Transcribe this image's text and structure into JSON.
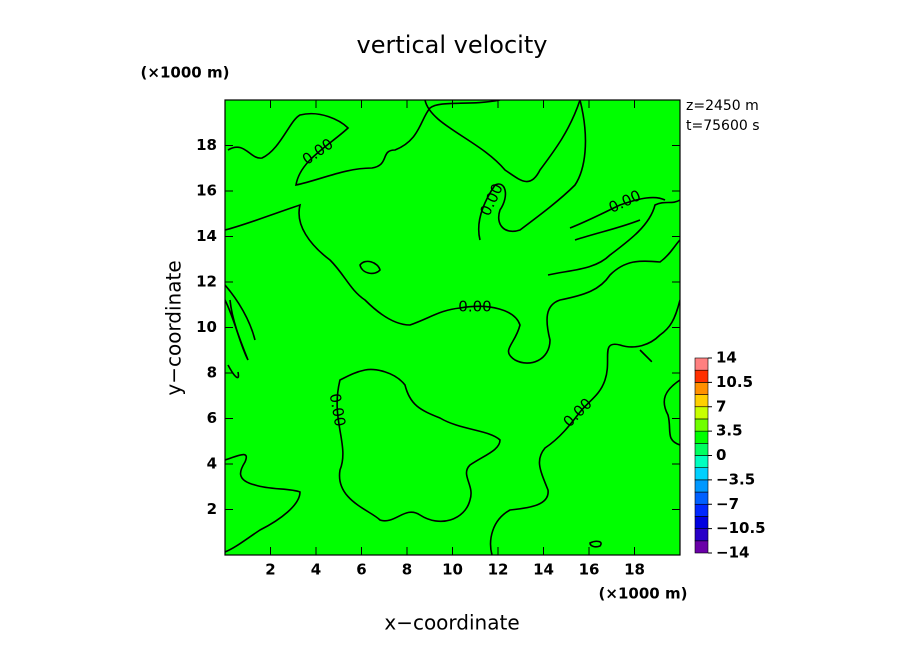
{
  "chart_data": {
    "type": "contour",
    "title": "vertical velocity",
    "xlabel": "x−coordinate",
    "ylabel": "y−coordinate",
    "x_unit": "(×1000 m)",
    "y_unit": "(×1000 m)",
    "annotations": [
      "z=2450 m",
      "t=75600 s"
    ],
    "xlim": [
      0,
      20
    ],
    "ylim": [
      0,
      20
    ],
    "xticks": [
      2,
      4,
      6,
      8,
      10,
      12,
      14,
      16,
      18
    ],
    "yticks": [
      2,
      4,
      6,
      8,
      10,
      12,
      14,
      16,
      18
    ],
    "fill_color": "#00ff00",
    "contour_level": {
      "value": 0,
      "label": "0.00"
    },
    "colorbar": {
      "levels": [
        -14,
        -12.25,
        -10.5,
        -8.75,
        -7,
        -5.25,
        -3.5,
        -1.75,
        0,
        1.75,
        3.5,
        5.25,
        7,
        8.75,
        10.5,
        12.25,
        14
      ],
      "colors": [
        "#6a00a8",
        "#2800c8",
        "#0000e0",
        "#0028ff",
        "#0060ff",
        "#0098ff",
        "#00d0ff",
        "#00ffc0",
        "#00ff60",
        "#00ff00",
        "#70ff00",
        "#c8ff00",
        "#ffd000",
        "#ff9000",
        "#ff3000",
        "#ff8080"
      ],
      "ticks": [
        {
          "value": -14,
          "label": "−14"
        },
        {
          "value": -10.5,
          "label": "−10.5"
        },
        {
          "value": -7,
          "label": "−7"
        },
        {
          "value": -3.5,
          "label": "−3.5"
        },
        0,
        3.5,
        7,
        10.5,
        14
      ]
    }
  }
}
